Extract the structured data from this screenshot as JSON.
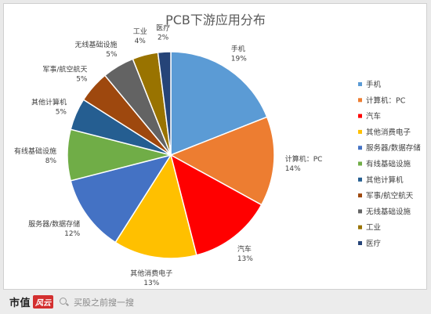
{
  "chart_data": {
    "type": "pie",
    "title": "PCB下游应用分布",
    "slices": [
      {
        "name": "手机",
        "value": 19,
        "label": "19%",
        "color": "#5B9BD5"
      },
      {
        "name": "计算机：PC",
        "value": 14,
        "label": "14%",
        "color": "#ED7D31"
      },
      {
        "name": "汽车",
        "value": 13,
        "label": "13%",
        "color": "#FF0000"
      },
      {
        "name": "其他消费电子",
        "value": 13,
        "label": "13%",
        "color": "#FFC000"
      },
      {
        "name": "服务器/数据存储",
        "value": 12,
        "label": "12%",
        "color": "#4472C4"
      },
      {
        "name": "有线基础设施",
        "value": 8,
        "label": "8%",
        "color": "#70AD47"
      },
      {
        "name": "其他计算机",
        "value": 5,
        "label": "5%",
        "color": "#255E91"
      },
      {
        "name": "军事/航空航天",
        "value": 5,
        "label": "5%",
        "color": "#9E480E"
      },
      {
        "name": "无线基础设施",
        "value": 5,
        "label": "5%",
        "color": "#636363"
      },
      {
        "name": "工业",
        "value": 4,
        "label": "4%",
        "color": "#997300"
      },
      {
        "name": "医疗",
        "value": 2,
        "label": "2%",
        "color": "#264478"
      }
    ],
    "legend_position": "right"
  },
  "footer": {
    "brand": "市值",
    "brand_mark": "风云",
    "search_placeholder": "买股之前搜一搜"
  }
}
